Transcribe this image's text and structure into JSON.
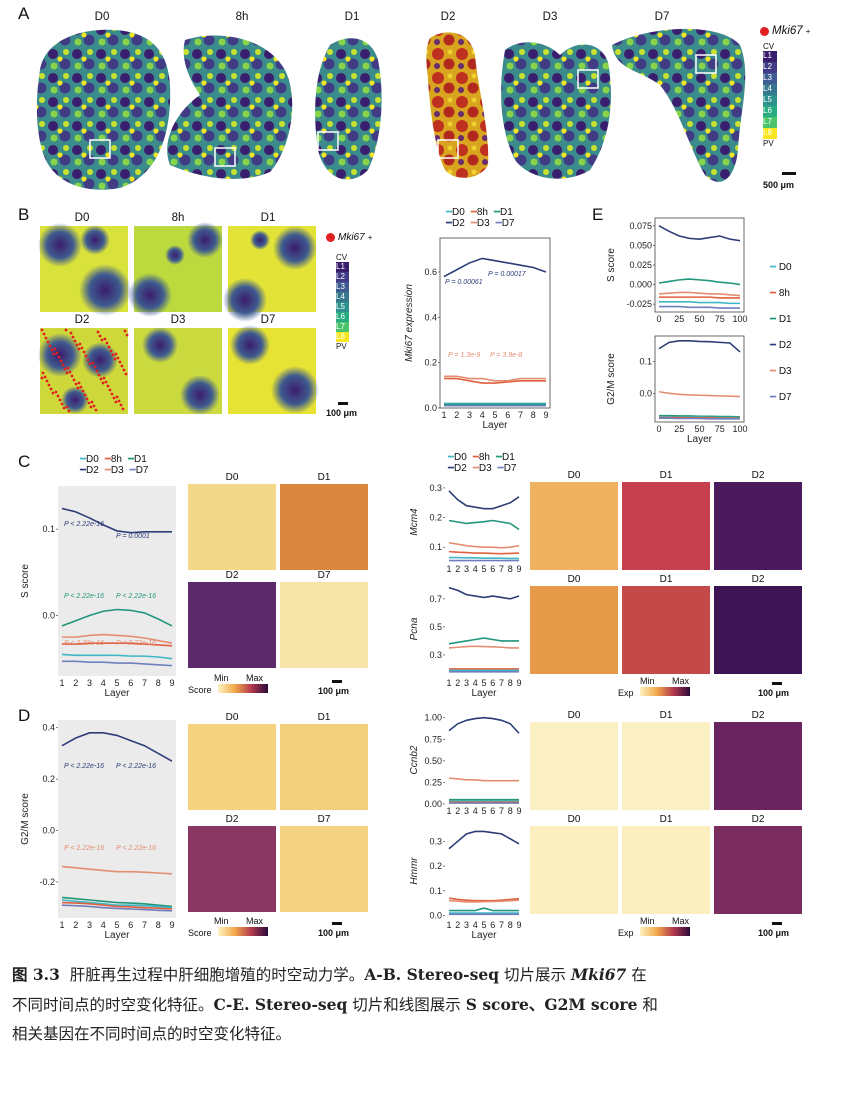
{
  "panels": {
    "A": "A",
    "B": "B",
    "C": "C",
    "D": "D",
    "E": "E"
  },
  "timepoints": [
    "D0",
    "8h",
    "D1",
    "D2",
    "D3",
    "D7"
  ],
  "marker": "Mki67",
  "marker_sup": "+",
  "layer_scale": [
    "CV",
    "L1",
    "L2",
    "L3",
    "L4",
    "L5",
    "L6",
    "L7",
    "L8",
    "PV"
  ],
  "layer_colors": [
    "#3b1d6e",
    "#423c86",
    "#3f5b8f",
    "#36778e",
    "#2d928b",
    "#29ac80",
    "#4ac36a",
    "#86d549",
    "#c9e12f",
    "#f7e61f"
  ],
  "scale_a": "500 μm",
  "scale_100": "100 μm",
  "series_colors": {
    "D0": "#3fb7c4",
    "8h": "#e0603f",
    "D1": "#21967a",
    "D2": "#2d3d78",
    "D3": "#e38e72",
    "D7": "#6f7fbd"
  },
  "b_chart_titles": [
    "D0",
    "8h",
    "D1",
    "D2",
    "D3",
    "D7"
  ],
  "chart_data": [
    {
      "type": "line",
      "id": "B-mki67",
      "ylabel": "Mki67 expression",
      "xlabel": "Layer",
      "x": [
        1,
        2,
        3,
        4,
        5,
        6,
        7,
        8,
        9
      ],
      "ylim": [
        0,
        0.75
      ],
      "yticks": [
        "0.0",
        "0.2",
        "0.4",
        "0.6"
      ],
      "series": [
        {
          "name": "D2",
          "values": [
            0.58,
            0.61,
            0.64,
            0.66,
            0.65,
            0.64,
            0.63,
            0.62,
            0.6
          ]
        },
        {
          "name": "8h",
          "values": [
            0.13,
            0.13,
            0.12,
            0.11,
            0.11,
            0.115,
            0.12,
            0.12,
            0.12
          ]
        },
        {
          "name": "D3",
          "values": [
            0.14,
            0.14,
            0.13,
            0.13,
            0.12,
            0.12,
            0.13,
            0.13,
            0.13
          ]
        },
        {
          "name": "D0",
          "values": [
            0.02,
            0.02,
            0.02,
            0.02,
            0.02,
            0.02,
            0.02,
            0.02,
            0.02
          ]
        },
        {
          "name": "D1",
          "values": [
            0.015,
            0.015,
            0.015,
            0.015,
            0.015,
            0.015,
            0.015,
            0.015,
            0.015
          ]
        },
        {
          "name": "D7",
          "values": [
            0.01,
            0.01,
            0.01,
            0.01,
            0.01,
            0.01,
            0.01,
            0.01,
            0.01
          ]
        }
      ],
      "annotations": [
        "P = 0.00061",
        "P = 0.00017",
        "P = 1.3e-9",
        "P = 3.9e-8"
      ]
    },
    {
      "type": "line",
      "id": "C-sscore",
      "ylabel": "S score",
      "xlabel": "Layer",
      "x": [
        1,
        2,
        3,
        4,
        5,
        6,
        7,
        8,
        9
      ],
      "ylim": [
        -0.07,
        0.15
      ],
      "yticks": [
        "0.1",
        "0.0"
      ],
      "series": [
        {
          "name": "D2",
          "values": [
            0.124,
            0.12,
            0.113,
            0.105,
            0.098,
            0.096,
            0.097,
            0.097,
            0.097
          ]
        },
        {
          "name": "D1",
          "values": [
            -0.012,
            -0.006,
            0.0,
            0.005,
            0.007,
            0.006,
            0.003,
            -0.004,
            -0.012
          ]
        },
        {
          "name": "D3",
          "values": [
            -0.025,
            -0.025,
            -0.023,
            -0.022,
            -0.023,
            -0.024,
            -0.026,
            -0.029,
            -0.032
          ]
        },
        {
          "name": "8h",
          "values": [
            -0.033,
            -0.033,
            -0.032,
            -0.032,
            -0.032,
            -0.032,
            -0.033,
            -0.034,
            -0.035
          ]
        },
        {
          "name": "D0",
          "values": [
            -0.045,
            -0.046,
            -0.046,
            -0.046,
            -0.046,
            -0.047,
            -0.047,
            -0.048,
            -0.05
          ]
        },
        {
          "name": "D7",
          "values": [
            -0.053,
            -0.053,
            -0.054,
            -0.054,
            -0.055,
            -0.055,
            -0.056,
            -0.057,
            -0.058
          ]
        }
      ],
      "annotations": [
        "P < 2.22e-16",
        "P = 0.0001",
        "P < 2.22e-16",
        "P < 2.22e-16",
        "P < 2.22e-16",
        "P < 2.22e-16"
      ]
    },
    {
      "type": "line",
      "id": "D-g2m",
      "ylabel": "G2/M score",
      "xlabel": "Layer",
      "x": [
        1,
        2,
        3,
        4,
        5,
        6,
        7,
        8,
        9
      ],
      "ylim": [
        -0.34,
        0.43
      ],
      "yticks": [
        "0.4",
        "0.2",
        "0.0",
        "-0.2"
      ],
      "series": [
        {
          "name": "D2",
          "values": [
            0.33,
            0.36,
            0.38,
            0.38,
            0.37,
            0.35,
            0.33,
            0.3,
            0.27
          ]
        },
        {
          "name": "D3",
          "values": [
            -0.14,
            -0.145,
            -0.15,
            -0.155,
            -0.16,
            -0.16,
            -0.162,
            -0.165,
            -0.168
          ]
        },
        {
          "name": "D1",
          "values": [
            -0.26,
            -0.265,
            -0.27,
            -0.275,
            -0.28,
            -0.282,
            -0.285,
            -0.29,
            -0.295
          ]
        },
        {
          "name": "D0",
          "values": [
            -0.27,
            -0.275,
            -0.28,
            -0.285,
            -0.29,
            -0.29,
            -0.292,
            -0.295,
            -0.3
          ]
        },
        {
          "name": "8h",
          "values": [
            -0.28,
            -0.282,
            -0.285,
            -0.29,
            -0.295,
            -0.297,
            -0.3,
            -0.302,
            -0.305
          ]
        },
        {
          "name": "D7",
          "values": [
            -0.29,
            -0.292,
            -0.295,
            -0.3,
            -0.303,
            -0.305,
            -0.307,
            -0.31,
            -0.312
          ]
        }
      ],
      "annotations": [
        "P < 2.22e-16",
        "P < 2.22e-16",
        "P < 2.22e-16",
        "P < 2.22e-16"
      ]
    },
    {
      "type": "line",
      "id": "E-sscore",
      "ylabel": "S score",
      "x_range": [
        0,
        100
      ],
      "xticks": [
        "0",
        "25",
        "50",
        "75",
        "100"
      ],
      "ylim": [
        -0.035,
        0.085
      ],
      "yticks": [
        "0.075",
        "0.050",
        "0.025",
        "0.000",
        "-0.025"
      ],
      "series": [
        {
          "name": "D2",
          "values": [
            0.075,
            0.068,
            0.062,
            0.059,
            0.058,
            0.06,
            0.062,
            0.058,
            0.056
          ]
        },
        {
          "name": "D1",
          "values": [
            0.002,
            0.004,
            0.006,
            0.007,
            0.006,
            0.005,
            0.003,
            0.002,
            0.0
          ]
        },
        {
          "name": "D3",
          "values": [
            -0.012,
            -0.011,
            -0.01,
            -0.01,
            -0.011,
            -0.012,
            -0.012,
            -0.013,
            -0.014
          ]
        },
        {
          "name": "8h",
          "values": [
            -0.016,
            -0.016,
            -0.016,
            -0.016,
            -0.016,
            -0.016,
            -0.017,
            -0.017,
            -0.017
          ]
        },
        {
          "name": "D0",
          "values": [
            -0.022,
            -0.022,
            -0.022,
            -0.022,
            -0.023,
            -0.023,
            -0.023,
            -0.024,
            -0.024
          ]
        },
        {
          "name": "D7",
          "values": [
            -0.028,
            -0.028,
            -0.028,
            -0.029,
            -0.029,
            -0.029,
            -0.03,
            -0.03,
            -0.03
          ]
        }
      ]
    },
    {
      "type": "line",
      "id": "E-g2m",
      "ylabel": "G2/M score",
      "xlabel": "Layer",
      "x_range": [
        0,
        100
      ],
      "xticks": [
        "0",
        "25",
        "50",
        "75",
        "100"
      ],
      "ylim": [
        -0.09,
        0.18
      ],
      "yticks": [
        "0.1",
        "0.0"
      ],
      "series": [
        {
          "name": "D2",
          "values": [
            0.14,
            0.16,
            0.165,
            0.165,
            0.163,
            0.162,
            0.16,
            0.158,
            0.13
          ]
        },
        {
          "name": "D3",
          "values": [
            0.005,
            0.0,
            -0.003,
            -0.005,
            -0.006,
            -0.007,
            -0.008,
            -0.009,
            -0.01
          ]
        },
        {
          "name": "D1",
          "values": [
            -0.07,
            -0.07,
            -0.071,
            -0.071,
            -0.072,
            -0.072,
            -0.073,
            -0.073,
            -0.074
          ]
        },
        {
          "name": "D0",
          "values": [
            -0.074,
            -0.074,
            -0.075,
            -0.075,
            -0.075,
            -0.076,
            -0.076,
            -0.076,
            -0.077
          ]
        },
        {
          "name": "8h",
          "values": [
            -0.076,
            -0.076,
            -0.076,
            -0.077,
            -0.077,
            -0.077,
            -0.078,
            -0.078,
            -0.078
          ]
        },
        {
          "name": "D7",
          "values": [
            -0.078,
            -0.078,
            -0.079,
            -0.079,
            -0.079,
            -0.08,
            -0.08,
            -0.08,
            -0.08
          ]
        }
      ]
    },
    {
      "type": "line",
      "id": "C-mcm4",
      "ylabel": "Mcm4",
      "x": [
        1,
        2,
        3,
        4,
        5,
        6,
        7,
        8,
        9
      ],
      "ylim": [
        0.05,
        0.32
      ],
      "yticks": [
        "0.3",
        "0.2",
        "0.1"
      ],
      "series": [
        {
          "name": "D2",
          "values": [
            0.29,
            0.26,
            0.24,
            0.235,
            0.23,
            0.23,
            0.24,
            0.25,
            0.27
          ]
        },
        {
          "name": "D1",
          "values": [
            0.19,
            0.185,
            0.18,
            0.183,
            0.186,
            0.19,
            0.185,
            0.18,
            0.16
          ]
        },
        {
          "name": "D3",
          "values": [
            0.115,
            0.11,
            0.105,
            0.102,
            0.1,
            0.1,
            0.098,
            0.1,
            0.105
          ]
        },
        {
          "name": "8h",
          "values": [
            0.085,
            0.083,
            0.082,
            0.08,
            0.08,
            0.079,
            0.078,
            0.079,
            0.08
          ]
        },
        {
          "name": "D0",
          "values": [
            0.065,
            0.065,
            0.064,
            0.064,
            0.063,
            0.063,
            0.063,
            0.062,
            0.062
          ]
        },
        {
          "name": "D7",
          "values": [
            0.055,
            0.055,
            0.055,
            0.055,
            0.055,
            0.055,
            0.055,
            0.055,
            0.055
          ]
        }
      ]
    },
    {
      "type": "line",
      "id": "C-pcna",
      "ylabel": "Pcna",
      "xlabel": "Layer",
      "x": [
        1,
        2,
        3,
        4,
        5,
        6,
        7,
        8,
        9
      ],
      "ylim": [
        0.15,
        0.82
      ],
      "yticks": [
        "0.7",
        "0.5",
        "0.3"
      ],
      "series": [
        {
          "name": "D2",
          "values": [
            0.78,
            0.76,
            0.73,
            0.72,
            0.71,
            0.72,
            0.71,
            0.7,
            0.72
          ]
        },
        {
          "name": "D1",
          "values": [
            0.38,
            0.39,
            0.4,
            0.41,
            0.42,
            0.41,
            0.4,
            0.4,
            0.4
          ]
        },
        {
          "name": "D3",
          "values": [
            0.35,
            0.355,
            0.36,
            0.362,
            0.36,
            0.358,
            0.355,
            0.35,
            0.35
          ]
        },
        {
          "name": "8h",
          "values": [
            0.2,
            0.2,
            0.2,
            0.2,
            0.2,
            0.2,
            0.2,
            0.2,
            0.2
          ]
        },
        {
          "name": "D0",
          "values": [
            0.19,
            0.19,
            0.19,
            0.19,
            0.19,
            0.19,
            0.19,
            0.19,
            0.19
          ]
        },
        {
          "name": "D7",
          "values": [
            0.18,
            0.18,
            0.18,
            0.18,
            0.18,
            0.18,
            0.18,
            0.18,
            0.18
          ]
        }
      ]
    },
    {
      "type": "line",
      "id": "D-ccnb2",
      "ylabel": "Ccnb2",
      "x": [
        1,
        2,
        3,
        4,
        5,
        6,
        7,
        8,
        9
      ],
      "ylim": [
        0,
        1.02
      ],
      "yticks": [
        "1.00",
        "0.75",
        "0.50",
        "0.25",
        "0.00"
      ],
      "series": [
        {
          "name": "D2",
          "values": [
            0.85,
            0.93,
            0.97,
            0.99,
            1.0,
            0.99,
            0.97,
            0.93,
            0.82
          ]
        },
        {
          "name": "D3",
          "values": [
            0.3,
            0.29,
            0.28,
            0.28,
            0.27,
            0.27,
            0.27,
            0.27,
            0.27
          ]
        },
        {
          "name": "D1",
          "values": [
            0.05,
            0.05,
            0.05,
            0.05,
            0.05,
            0.05,
            0.05,
            0.05,
            0.05
          ]
        },
        {
          "name": "D0",
          "values": [
            0.03,
            0.03,
            0.03,
            0.03,
            0.03,
            0.03,
            0.03,
            0.03,
            0.03
          ]
        },
        {
          "name": "8h",
          "values": [
            0.02,
            0.02,
            0.02,
            0.02,
            0.02,
            0.02,
            0.02,
            0.02,
            0.02
          ]
        },
        {
          "name": "D7",
          "values": [
            0.01,
            0.01,
            0.01,
            0.01,
            0.01,
            0.01,
            0.01,
            0.01,
            0.01
          ]
        }
      ]
    },
    {
      "type": "line",
      "id": "D-hmmr",
      "ylabel": "Hmmr",
      "xlabel": "Layer",
      "x": [
        1,
        2,
        3,
        4,
        5,
        6,
        7,
        8,
        9
      ],
      "ylim": [
        -0.01,
        0.37
      ],
      "yticks": [
        "0.3",
        "0.2",
        "0.1",
        "0.0"
      ],
      "series": [
        {
          "name": "D2",
          "values": [
            0.27,
            0.3,
            0.33,
            0.34,
            0.34,
            0.335,
            0.33,
            0.31,
            0.29
          ]
        },
        {
          "name": "8h",
          "values": [
            0.07,
            0.065,
            0.062,
            0.06,
            0.06,
            0.06,
            0.062,
            0.065,
            0.068
          ]
        },
        {
          "name": "D3",
          "values": [
            0.06,
            0.058,
            0.055,
            0.055,
            0.056,
            0.057,
            0.058,
            0.06,
            0.062
          ]
        },
        {
          "name": "D1",
          "values": [
            0.02,
            0.02,
            0.02,
            0.02,
            0.03,
            0.02,
            0.02,
            0.02,
            0.02
          ]
        },
        {
          "name": "D0",
          "values": [
            0.01,
            0.01,
            0.01,
            0.01,
            0.01,
            0.01,
            0.01,
            0.01,
            0.01
          ]
        },
        {
          "name": "D7",
          "values": [
            0.005,
            0.005,
            0.005,
            0.005,
            0.005,
            0.005,
            0.005,
            0.005,
            0.005
          ]
        }
      ]
    }
  ],
  "c_maps": {
    "labels": [
      "D0",
      "D1",
      "D2",
      "D7"
    ],
    "legend_title": "Score",
    "min": "Min",
    "max": "Max"
  },
  "c_gene_maps": {
    "labels": [
      "D0",
      "D1",
      "D2"
    ],
    "legend_title": "Exp",
    "min": "Min",
    "max": "Max",
    "genes": [
      "Mcm4",
      "Pcna"
    ]
  },
  "d_gene_maps": {
    "genes": [
      "Ccnb2",
      "Hmmr"
    ]
  },
  "axis_layer": "Layer",
  "caption": {
    "fig": "图 3.3",
    "line1a": "肝脏再生过程中肝细胞增殖的时空动力学。",
    "line1b": "A-B. Stereo-seq",
    "line1c": "切片展示",
    "line1gene": "Mki67",
    "line1d": "在",
    "line2a": "不同时间点的时空变化特征。",
    "line2b": "C-E. Stereo-seq",
    "line2c": "切片和线图展示",
    "line2d": "S score、G2M score",
    "line2e": "和",
    "line3": "相关基因在不同时间点的时空变化特征。"
  }
}
